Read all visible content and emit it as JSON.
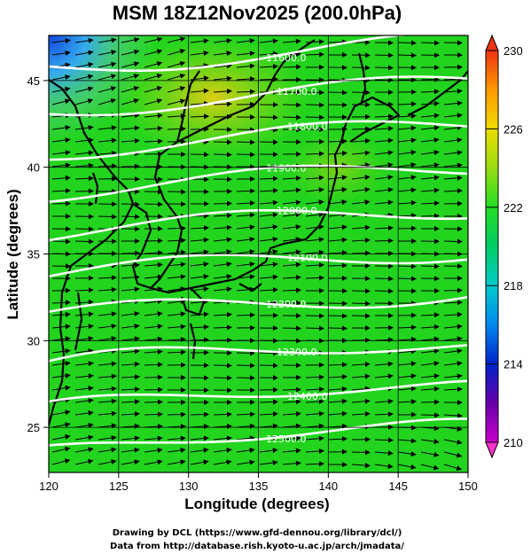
{
  "title": "MSM 18Z12Nov2025 (200.0hPa)",
  "xaxis": {
    "label": "Longitude (degrees)",
    "range": [
      120,
      150
    ],
    "ticks": [
      "120",
      "125",
      "130",
      "135",
      "140",
      "145",
      "150"
    ]
  },
  "yaxis": {
    "label": "Latitude (degrees)",
    "range": [
      22.4,
      47.6
    ],
    "ticks": [
      "25",
      "30",
      "35",
      "40",
      "45"
    ]
  },
  "colorbar": {
    "range": [
      210,
      230
    ],
    "ticks": [
      "210",
      "214",
      "218",
      "222",
      "226",
      "230"
    ]
  },
  "contours": {
    "labels": [
      "11600.0",
      "11700.0",
      "11800.0",
      "11900.0",
      "12000.0",
      "12100.0",
      "12200.0",
      "12300.0",
      "12400.0",
      "12500.0"
    ]
  },
  "credits": {
    "line1": "Drawing by DCL (https://www.gfd-dennou.org/library/dcl/)",
    "line2": "Data from http://database.rish.kyoto-u.ac.jp/arch/jmadata/"
  },
  "colors": {
    "background_field": "#22d41e",
    "contour": "#ffffff",
    "coastline": "#000000",
    "vector": "#000000"
  }
}
